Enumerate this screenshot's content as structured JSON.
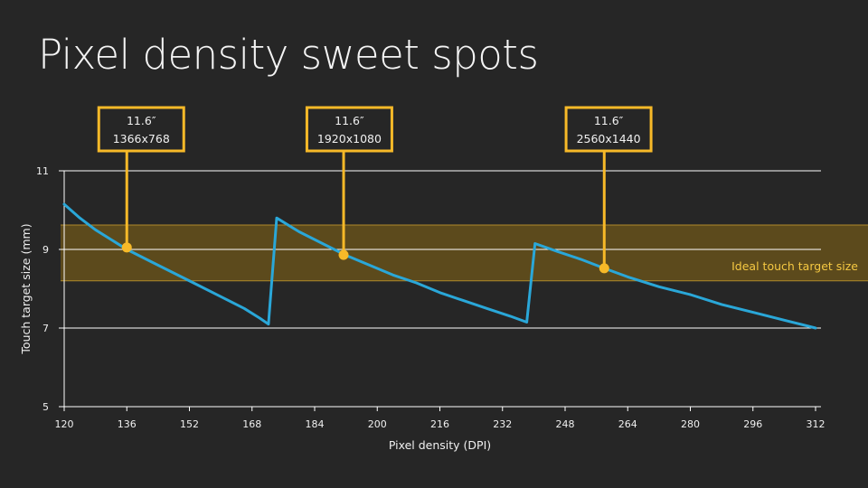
{
  "colors": {
    "background": "#262626",
    "line": "#2aa7d8",
    "accent": "#f7b928",
    "band_fill": "#5c4a1c",
    "band_edge": "#b08a2a",
    "grid": "#ffffff"
  },
  "chart_data": {
    "type": "line",
    "title": "Pixel density sweet spots",
    "xlabel": "Pixel density (DPI)",
    "ylabel": "Touch target size (mm)",
    "xlim": [
      120,
      312
    ],
    "ylim": [
      5,
      11
    ],
    "x_ticks": [
      "120",
      "136",
      "152",
      "168",
      "184",
      "200",
      "216",
      "232",
      "248",
      "264",
      "280",
      "296",
      "312"
    ],
    "y_ticks": [
      "5",
      "7",
      "9",
      "11"
    ],
    "grid": true,
    "series": [
      {
        "name": "Touch target size",
        "points": [
          [
            120,
            10.15
          ],
          [
            124,
            9.8
          ],
          [
            128,
            9.5
          ],
          [
            132,
            9.25
          ],
          [
            136,
            9.0
          ],
          [
            142,
            8.7
          ],
          [
            148,
            8.4
          ],
          [
            154,
            8.1
          ],
          [
            160,
            7.8
          ],
          [
            166,
            7.5
          ],
          [
            170,
            7.25
          ],
          [
            172.2,
            7.1
          ],
          [
            174.3,
            9.8
          ],
          [
            180,
            9.45
          ],
          [
            186,
            9.15
          ],
          [
            192,
            8.85
          ],
          [
            198,
            8.6
          ],
          [
            204,
            8.35
          ],
          [
            210,
            8.15
          ],
          [
            216,
            7.9
          ],
          [
            222,
            7.7
          ],
          [
            228,
            7.5
          ],
          [
            234,
            7.3
          ],
          [
            238.2,
            7.15
          ],
          [
            240.3,
            9.15
          ],
          [
            246,
            8.95
          ],
          [
            252,
            8.75
          ],
          [
            258,
            8.52
          ],
          [
            264,
            8.3
          ],
          [
            272,
            8.05
          ],
          [
            280,
            7.85
          ],
          [
            288,
            7.6
          ],
          [
            296,
            7.4
          ],
          [
            304,
            7.2
          ],
          [
            312,
            7.0
          ]
        ]
      }
    ],
    "band": {
      "label": "Ideal touch target size",
      "y_min": 8.2,
      "y_max": 9.62
    },
    "annotations": [
      {
        "size": "11.6″",
        "resolution": "1366x768",
        "x": 136,
        "y": 9.05
      },
      {
        "size": "11.6″",
        "resolution": "1920x1080",
        "x": 191.4,
        "y": 8.86
      },
      {
        "size": "11.6″",
        "resolution": "2560x1440",
        "x": 258,
        "y": 8.52
      }
    ]
  }
}
